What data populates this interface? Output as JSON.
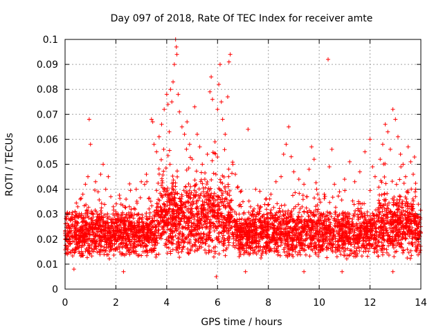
{
  "chart_data": {
    "type": "scatter",
    "title": "Day 097 of 2018, Rate Of TEC Index for receiver amte",
    "xlabel": "GPS time / hours",
    "ylabel": "ROTI / TECUs",
    "xlim": [
      0,
      14
    ],
    "ylim": [
      0,
      0.1
    ],
    "x_ticks": [
      0,
      2,
      4,
      6,
      8,
      10,
      12,
      14
    ],
    "y_ticks": [
      0,
      0.01,
      0.02,
      0.03,
      0.04,
      0.05,
      0.06,
      0.07,
      0.08,
      0.09,
      0.1
    ],
    "x_tick_labels": [
      "0",
      "2",
      "4",
      "6",
      "8",
      "10",
      "12",
      "14"
    ],
    "y_tick_labels": [
      "0",
      "0.01",
      "0.02",
      "0.03",
      "0.04",
      "0.05",
      "0.06",
      "0.07",
      "0.08",
      "0.09",
      "0.1"
    ],
    "grid": true,
    "marker": "plus",
    "series": [
      {
        "name": "ROTI",
        "color": "#ff0000",
        "points": [
          [
            0.05,
            0.029
          ],
          [
            0.1,
            0.014
          ],
          [
            0.15,
            0.021
          ],
          [
            0.2,
            0.018
          ],
          [
            0.3,
            0.025
          ],
          [
            0.4,
            0.016
          ],
          [
            0.5,
            0.033
          ],
          [
            0.6,
            0.036
          ],
          [
            0.7,
            0.038
          ],
          [
            0.8,
            0.042
          ],
          [
            0.9,
            0.045
          ],
          [
            0.95,
            0.068
          ],
          [
            1.0,
            0.058
          ],
          [
            1.1,
            0.03
          ],
          [
            1.2,
            0.043
          ],
          [
            1.3,
            0.039
          ],
          [
            1.4,
            0.046
          ],
          [
            1.5,
            0.05
          ],
          [
            1.6,
            0.04
          ],
          [
            1.7,
            0.045
          ],
          [
            1.8,
            0.037
          ],
          [
            1.9,
            0.033
          ],
          [
            2.0,
            0.031
          ],
          [
            2.2,
            0.034
          ],
          [
            2.4,
            0.036
          ],
          [
            2.6,
            0.032
          ],
          [
            2.8,
            0.04
          ],
          [
            3.0,
            0.043
          ],
          [
            3.2,
            0.046
          ],
          [
            3.4,
            0.068
          ],
          [
            3.5,
            0.058
          ],
          [
            3.6,
            0.055
          ],
          [
            3.7,
            0.061
          ],
          [
            3.8,
            0.066
          ],
          [
            3.9,
            0.072
          ],
          [
            4.0,
            0.078
          ],
          [
            4.05,
            0.074
          ],
          [
            4.1,
            0.063
          ],
          [
            4.15,
            0.08
          ],
          [
            4.2,
            0.075
          ],
          [
            4.25,
            0.083
          ],
          [
            4.3,
            0.09
          ],
          [
            4.35,
            0.1
          ],
          [
            4.38,
            0.097
          ],
          [
            4.4,
            0.094
          ],
          [
            4.45,
            0.078
          ],
          [
            4.5,
            0.071
          ],
          [
            4.6,
            0.065
          ],
          [
            4.7,
            0.062
          ],
          [
            4.8,
            0.067
          ],
          [
            4.9,
            0.058
          ],
          [
            5.0,
            0.052
          ],
          [
            5.1,
            0.073
          ],
          [
            5.2,
            0.062
          ],
          [
            5.3,
            0.057
          ],
          [
            5.4,
            0.05
          ],
          [
            5.5,
            0.044
          ],
          [
            5.6,
            0.054
          ],
          [
            5.7,
            0.079
          ],
          [
            5.75,
            0.085
          ],
          [
            5.8,
            0.076
          ],
          [
            5.9,
            0.059
          ],
          [
            6.0,
            0.072
          ],
          [
            6.05,
            0.082
          ],
          [
            6.1,
            0.09
          ],
          [
            6.15,
            0.075
          ],
          [
            6.2,
            0.068
          ],
          [
            6.3,
            0.062
          ],
          [
            6.4,
            0.077
          ],
          [
            6.45,
            0.091
          ],
          [
            6.5,
            0.094
          ],
          [
            6.6,
            0.05
          ],
          [
            6.7,
            0.046
          ],
          [
            6.8,
            0.041
          ],
          [
            6.9,
            0.039
          ],
          [
            7.0,
            0.035
          ],
          [
            7.2,
            0.064
          ],
          [
            7.3,
            0.033
          ],
          [
            7.5,
            0.04
          ],
          [
            7.7,
            0.033
          ],
          [
            7.9,
            0.036
          ],
          [
            8.1,
            0.038
          ],
          [
            8.3,
            0.043
          ],
          [
            8.5,
            0.045
          ],
          [
            8.6,
            0.054
          ],
          [
            8.7,
            0.058
          ],
          [
            8.8,
            0.065
          ],
          [
            8.9,
            0.053
          ],
          [
            9.0,
            0.047
          ],
          [
            9.2,
            0.044
          ],
          [
            9.4,
            0.042
          ],
          [
            9.6,
            0.048
          ],
          [
            9.7,
            0.057
          ],
          [
            9.8,
            0.052
          ],
          [
            9.9,
            0.04
          ],
          [
            10.0,
            0.036
          ],
          [
            10.2,
            0.038
          ],
          [
            10.35,
            0.092
          ],
          [
            10.4,
            0.049
          ],
          [
            10.5,
            0.056
          ],
          [
            10.6,
            0.042
          ],
          [
            10.8,
            0.039
          ],
          [
            11.0,
            0.044
          ],
          [
            11.2,
            0.051
          ],
          [
            11.4,
            0.043
          ],
          [
            11.6,
            0.047
          ],
          [
            11.8,
            0.055
          ],
          [
            12.0,
            0.06
          ],
          [
            12.1,
            0.049
          ],
          [
            12.2,
            0.045
          ],
          [
            12.4,
            0.052
          ],
          [
            12.5,
            0.058
          ],
          [
            12.6,
            0.066
          ],
          [
            12.7,
            0.063
          ],
          [
            12.8,
            0.056
          ],
          [
            12.9,
            0.072
          ],
          [
            13.0,
            0.068
          ],
          [
            13.1,
            0.061
          ],
          [
            13.2,
            0.054
          ],
          [
            13.3,
            0.05
          ],
          [
            13.4,
            0.045
          ],
          [
            13.5,
            0.057
          ],
          [
            13.6,
            0.051
          ],
          [
            13.7,
            0.046
          ],
          [
            13.8,
            0.04
          ],
          [
            13.9,
            0.034
          ],
          [
            3.45,
            0.067
          ],
          [
            0.35,
            0.008
          ],
          [
            2.3,
            0.007
          ],
          [
            5.95,
            0.005
          ],
          [
            7.1,
            0.007
          ],
          [
            9.4,
            0.007
          ],
          [
            10.9,
            0.007
          ],
          [
            12.9,
            0.007
          ]
        ],
        "band_hint": {
          "typical_low": 0.012,
          "typical_high": 0.032
        }
      }
    ]
  }
}
